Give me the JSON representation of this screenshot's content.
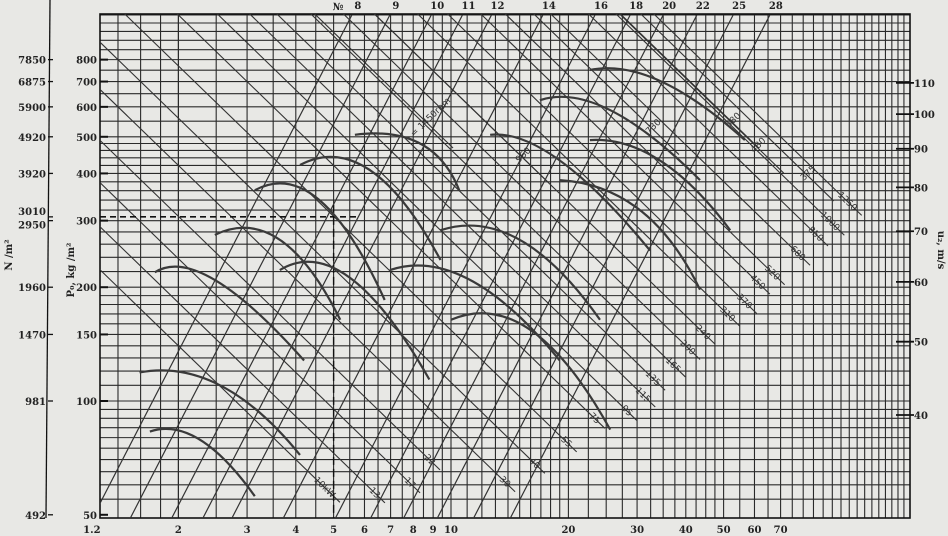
{
  "chart_data": {
    "type": "line",
    "x_axis": {
      "scale": "log",
      "ticks": [
        1.2,
        2,
        3,
        4,
        5,
        6,
        7,
        8,
        9,
        10,
        20,
        30,
        40,
        50,
        60,
        70
      ],
      "tick_labels": [
        "1.2",
        "2",
        "3",
        "4",
        "5",
        "6",
        "7",
        "8",
        "9",
        "10",
        "20",
        "30",
        "40",
        "50",
        "60",
        "70"
      ]
    },
    "y_axis": {
      "label": "P₀, kg /m²",
      "scale": "log",
      "ticks": [
        50,
        100,
        150,
        200,
        300,
        400,
        500,
        600,
        700,
        800
      ],
      "tick_labels": [
        "50",
        "100",
        "150",
        "200",
        "300",
        "400",
        "500",
        "600",
        "700",
        "800"
      ]
    },
    "y_axis_secondary_left": {
      "label": "N /m²",
      "ticks": [
        {
          "label": "7850",
          "p": 800
        },
        {
          "label": "6875",
          "p": 700
        },
        {
          "label": "5900",
          "p": 600
        },
        {
          "label": "4920",
          "p": 500
        },
        {
          "label": "3920",
          "p": 400
        },
        {
          "label": "3010",
          "p": 307
        },
        {
          "label": "2950",
          "p": 300
        },
        {
          "label": "1960",
          "p": 200
        },
        {
          "label": "1470",
          "p": 150
        },
        {
          "label": "981",
          "p": 100
        },
        {
          "label": "492",
          "p": 50
        }
      ]
    },
    "y_axis_right": {
      "label": "u₂, m/s",
      "ticks": [
        40,
        50,
        60,
        70,
        80,
        90,
        100,
        110
      ],
      "tick_labels": [
        "40",
        "50",
        "60",
        "70",
        "80",
        "90",
        "100",
        "110"
      ]
    },
    "grid": true,
    "fan_size_lines": {
      "prefix": "№",
      "labels": [
        "8",
        "9",
        "10",
        "11",
        "12",
        "14",
        "16",
        "18",
        "20",
        "22",
        "25",
        "28"
      ],
      "q_at_top": [
        5.57,
        6.97,
        8.9,
        10.7,
        12.7,
        17.2,
        23.4,
        28.8,
        35,
        42.7,
        52.9,
        65.7
      ]
    },
    "power_lines": {
      "unit_suffix": "kW",
      "labels": [
        "10kW",
        "13",
        "17",
        "22",
        "30",
        "40",
        "55",
        "75",
        "95",
        "115",
        "135",
        "165",
        "200",
        "240",
        "310",
        "370",
        "450",
        "520",
        "680",
        "850",
        "1000",
        "1250"
      ],
      "kw": [
        10,
        13,
        17,
        22,
        30,
        40,
        55,
        75,
        95,
        115,
        135,
        165,
        200,
        240,
        310,
        370,
        450,
        520,
        680,
        850,
        1000,
        1250
      ],
      "end_q": [
        5.19,
        6.77,
        8.33,
        9.37,
        14.6,
        17.4,
        21.0,
        24.8,
        30.0,
        33.4,
        35.4,
        39.9,
        43.5,
        47.6,
        55.0,
        60.8,
        65.7,
        71.7,
        83.3,
        92.6,
        102,
        113
      ]
    },
    "speed_lines": {
      "labels": [
        "n = 1450rpm",
        "960",
        "730",
        "580",
        "480",
        "375"
      ],
      "points": [
        [
          8.8,
          537
        ],
        [
          15.5,
          434
        ],
        [
          33.4,
          516
        ],
        [
          53.5,
          537
        ],
        [
          62,
          461
        ],
        [
          83.3,
          389
        ]
      ]
    },
    "performance_curves": [
      [
        [
          1.69,
          83
        ],
        [
          2.27,
          79
        ],
        [
          3.14,
          56
        ]
      ],
      [
        [
          1.59,
          119
        ],
        [
          2.56,
          110
        ],
        [
          4.1,
          72
        ]
      ],
      [
        [
          1.74,
          219
        ],
        [
          2.48,
          209
        ],
        [
          4.2,
          128
        ]
      ],
      [
        [
          2.48,
          275
        ],
        [
          3.64,
          267
        ],
        [
          5.2,
          164
        ]
      ],
      [
        [
          3.14,
          361
        ],
        [
          4.6,
          340
        ],
        [
          6.76,
          185
        ]
      ],
      [
        [
          4.1,
          421
        ],
        [
          6.2,
          408
        ],
        [
          9.4,
          236
        ]
      ],
      [
        [
          5.67,
          506
        ],
        [
          8.33,
          480
        ],
        [
          10.5,
          361
        ]
      ],
      [
        [
          3.64,
          222
        ],
        [
          5.5,
          212
        ],
        [
          8.8,
          114
        ]
      ],
      [
        [
          6.97,
          222
        ],
        [
          11.2,
          209
        ],
        [
          19,
          128
        ]
      ],
      [
        [
          9.4,
          283
        ],
        [
          15,
          267
        ],
        [
          24.1,
          164
        ]
      ],
      [
        [
          12.6,
          506
        ],
        [
          19,
          433
        ],
        [
          32.4,
          250
        ]
      ],
      [
        [
          16.9,
          625
        ],
        [
          25.6,
          588
        ],
        [
          43.5,
          384
        ]
      ],
      [
        [
          22.7,
          751
        ],
        [
          34.3,
          703
        ],
        [
          56.7,
          490
        ]
      ],
      [
        [
          19,
          384
        ],
        [
          30.5,
          320
        ],
        [
          43.5,
          197
        ]
      ],
      [
        [
          10,
          164
        ],
        [
          16,
          154
        ],
        [
          25.6,
          84
        ]
      ],
      [
        [
          22.7,
          490
        ],
        [
          34.3,
          433
        ],
        [
          52,
          283
        ]
      ]
    ],
    "operating_point": {
      "q": 5,
      "p": 307
    }
  }
}
